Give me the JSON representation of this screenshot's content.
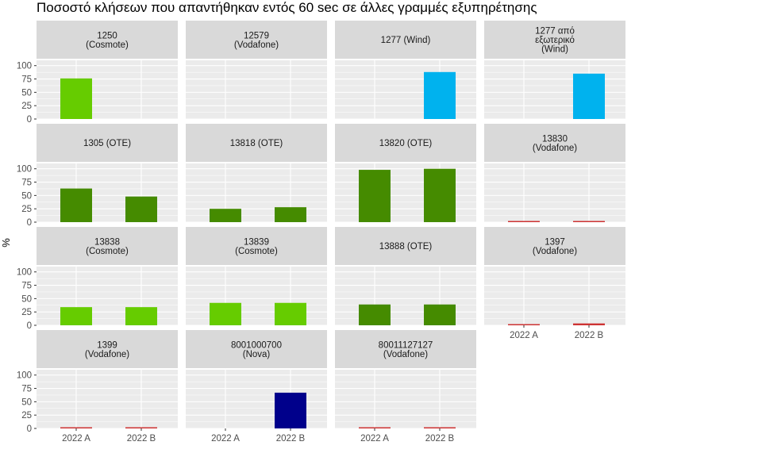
{
  "chart_data": {
    "type": "bar",
    "title": "Ποσοστό κλήσεων που απαντήθηκαν εντός 60 sec σε άλλες γραμμές εξυπηρέτησης",
    "ylabel": "%",
    "xlabel": "",
    "categories": [
      "2022 A",
      "2022 B"
    ],
    "y_ticks": [
      "0",
      "25",
      "50",
      "75",
      "100"
    ],
    "ylim": [
      0,
      110
    ],
    "grid": true,
    "colors": {
      "Cosmote": "#66cc00",
      "OTE": "#458b00",
      "Wind": "#00b2ee",
      "Vodafone": "#cd3333",
      "Nova": "#00008b",
      "panel_bg": "#ebebeb",
      "strip_bg": "#d9d9d9",
      "grid": "#ffffff"
    },
    "panels": [
      {
        "label": "1250\n(Cosmote)",
        "provider": "Cosmote",
        "values": [
          76,
          null
        ]
      },
      {
        "label": "12579\n(Vodafone)",
        "provider": "Vodafone",
        "values": [
          null,
          null
        ]
      },
      {
        "label": "1277 (Wind)",
        "provider": "Wind",
        "values": [
          null,
          88
        ]
      },
      {
        "label": "1277 από\nεξωτερικό\n(Wind)",
        "provider": "Wind",
        "values": [
          null,
          85
        ]
      },
      {
        "label": "1305 (OTE)",
        "provider": "OTE",
        "values": [
          63,
          48
        ]
      },
      {
        "label": "13818 (OTE)",
        "provider": "OTE",
        "values": [
          25,
          28
        ]
      },
      {
        "label": "13820 (OTE)",
        "provider": "OTE",
        "values": [
          98,
          100
        ]
      },
      {
        "label": "13830\n(Vodafone)",
        "provider": "Vodafone",
        "values": [
          0.8,
          0.8
        ]
      },
      {
        "label": "13838\n(Cosmote)",
        "provider": "Cosmote",
        "values": [
          34,
          34
        ]
      },
      {
        "label": "13839\n(Cosmote)",
        "provider": "Cosmote",
        "values": [
          42,
          42
        ]
      },
      {
        "label": "13888 (OTE)",
        "provider": "OTE",
        "values": [
          39,
          39
        ]
      },
      {
        "label": "1397\n(Vodafone)",
        "provider": "Vodafone",
        "values": [
          2,
          3.5
        ]
      },
      {
        "label": "1399\n(Vodafone)",
        "provider": "Vodafone",
        "values": [
          1,
          1
        ]
      },
      {
        "label": "8001000700\n(Nova)",
        "provider": "Nova",
        "values": [
          null,
          67
        ]
      },
      {
        "label": "80011127127\n(Vodafone)",
        "provider": "Vodafone",
        "values": [
          1,
          1
        ]
      }
    ]
  }
}
